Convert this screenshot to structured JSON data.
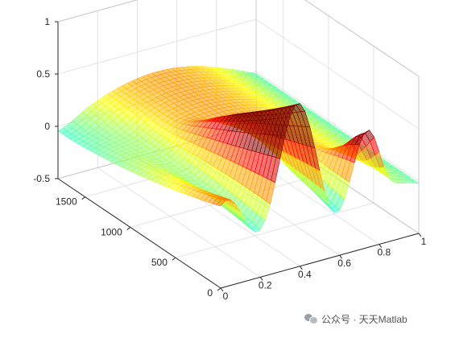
{
  "chart_data": {
    "type": "surface3d",
    "title": "",
    "xlabel": "",
    "ylabel": "",
    "zlabel": "",
    "xlim": [
      0,
      1
    ],
    "ylim": [
      0,
      1800
    ],
    "zlim": [
      -0.5,
      1
    ],
    "x_ticks": [
      "0",
      "0.2",
      "0.4",
      "0.6",
      "0.8",
      "1"
    ],
    "y_ticks": [
      "0",
      "500",
      "1000",
      "1500"
    ],
    "z_ticks": [
      "-0.5",
      "0",
      "0.5",
      "1"
    ],
    "colormap": "jet",
    "grid": true,
    "box": true,
    "series": [
      {
        "x_range": [
          0,
          1
        ],
        "y_range": [
          0,
          1800
        ],
        "z_range": [
          -0.5,
          0.55
        ],
        "mesh_resolution": [
          40,
          40
        ],
        "surface": "standing-wave with travelling front: flat cyan plane near z = 0 at high y, rising to a red crest of about 0.55 near x = 0.8, and oscillating ripples dipping to about -0.5 at low y"
      }
    ]
  },
  "watermark": {
    "icon": "wechat-icon",
    "text": "公众号 · 天天Matlab"
  }
}
